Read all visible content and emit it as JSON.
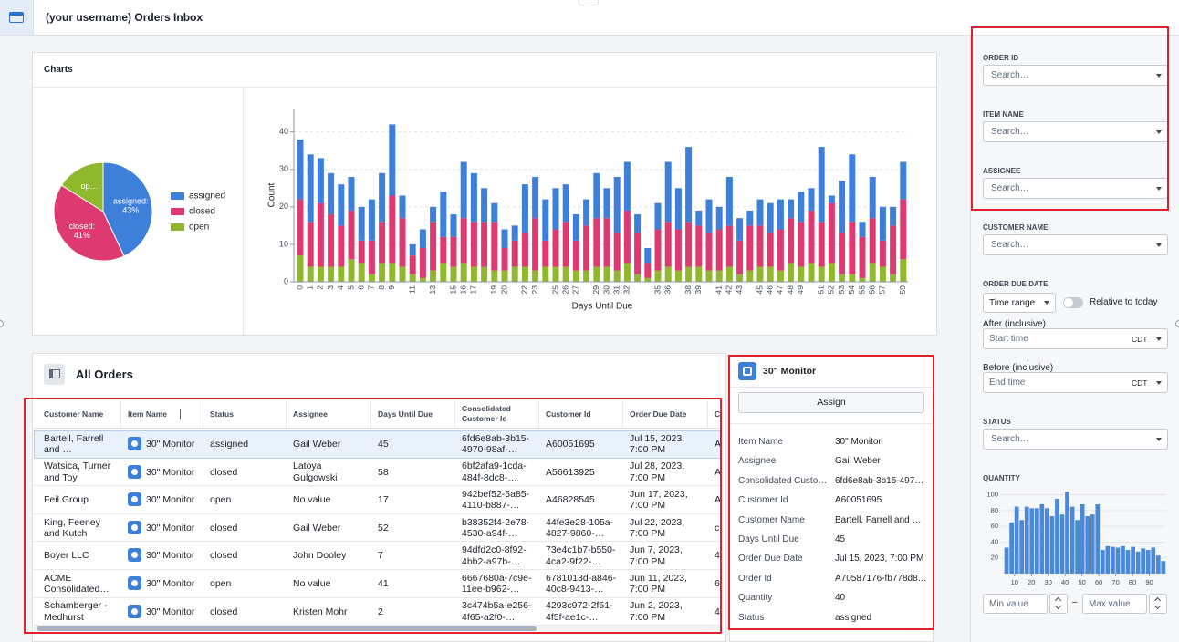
{
  "header": {
    "title": "(your username) Orders Inbox"
  },
  "charts_panel": {
    "title": "Charts",
    "pie_chart": {
      "type": "pie",
      "categories": [
        "assigned",
        "closed",
        "open"
      ],
      "values": [
        43,
        41,
        16
      ],
      "slice_labels": [
        "assigned:",
        "closed:",
        "op…"
      ],
      "value_labels": [
        "43%",
        "41%",
        null
      ],
      "colors": [
        "#3d7fd9",
        "#dc3a70",
        "#8fb82c"
      ],
      "legend": "right"
    },
    "bar_chart": {
      "type": "bar",
      "stacked": true,
      "x_label": "Days Until Due",
      "y_label": "Count",
      "categories": [
        "0",
        "1",
        "2",
        "3",
        "4",
        "5",
        "6",
        "7",
        "8",
        "9",
        null,
        "11",
        null,
        "13",
        null,
        "15",
        "16",
        "17",
        null,
        "19",
        "20",
        null,
        "22",
        "23",
        null,
        "25",
        "26",
        "27",
        null,
        "29",
        "30",
        "31",
        "32",
        null,
        null,
        "35",
        "36",
        null,
        "38",
        "39",
        null,
        "41",
        "42",
        "43",
        null,
        "45",
        "46",
        "47",
        "48",
        "49",
        null,
        "51",
        "52",
        "53",
        "54",
        "55",
        "56",
        "57",
        null,
        "59"
      ],
      "series": [
        {
          "name": "open",
          "color": "#8fb82c",
          "values": [
            7,
            4,
            4,
            4,
            4,
            6,
            5,
            2,
            5,
            5,
            4,
            2,
            1,
            3,
            5,
            4,
            5,
            4,
            4,
            3,
            3,
            4,
            4,
            3,
            4,
            4,
            4,
            3,
            3,
            4,
            4,
            3,
            5,
            2,
            1,
            3,
            4,
            3,
            4,
            4,
            3,
            3,
            4,
            2,
            3,
            4,
            4,
            3,
            5,
            4,
            5,
            4,
            5,
            2,
            2,
            1,
            5,
            4,
            2,
            6
          ]
        },
        {
          "name": "closed",
          "color": "#dc3a70",
          "values": [
            15,
            12,
            17,
            14,
            11,
            13,
            6,
            9,
            11,
            18,
            13,
            5,
            8,
            13,
            7,
            8,
            12,
            12,
            12,
            13,
            6,
            7,
            9,
            14,
            7,
            10,
            12,
            8,
            12,
            13,
            13,
            10,
            14,
            11,
            4,
            11,
            12,
            11,
            12,
            11,
            10,
            11,
            11,
            9,
            12,
            11,
            9,
            11,
            12,
            12,
            14,
            12,
            16,
            11,
            14,
            11,
            12,
            7,
            13,
            16
          ]
        },
        {
          "name": "assigned",
          "color": "#3d7fd9",
          "values": [
            16,
            18,
            12,
            11,
            11,
            9,
            9,
            11,
            13,
            19,
            6,
            3,
            5,
            4,
            12,
            6,
            15,
            13,
            9,
            5,
            5,
            4,
            13,
            11,
            11,
            11,
            10,
            7,
            7,
            12,
            8,
            15,
            13,
            5,
            4,
            7,
            16,
            11,
            20,
            4,
            9,
            6,
            13,
            6,
            4,
            7,
            8,
            8,
            5,
            8,
            6,
            20,
            2,
            14,
            18,
            4,
            11,
            9,
            5,
            10
          ]
        }
      ],
      "ylim": [
        0,
        46
      ],
      "yticks": [
        0,
        10,
        20,
        30,
        40
      ],
      "grid": true
    }
  },
  "table": {
    "title": "All Orders",
    "columns": [
      "Customer Name",
      "Item Name",
      "Status",
      "Assignee",
      "Days Until Due",
      "Consolidated Customer Id",
      "Customer Id",
      "Order Due Date",
      "C"
    ],
    "rows": [
      [
        "Bartell, Farrell and …",
        "30\" Monitor",
        "assigned",
        "Gail Weber",
        45,
        "6fd6e8ab-3b15-4970-98af-…",
        "A60051695",
        "Jul 15, 2023, 7:00 PM",
        "A"
      ],
      [
        "Watsica, Turner and Toy",
        "30\" Monitor",
        "closed",
        "Latoya Gulgowski",
        58,
        "6bf2afa9-1cda-484f-8dc8-…",
        "A56613925",
        "Jul 28, 2023, 7:00 PM",
        "A"
      ],
      [
        "Feil Group",
        "30\" Monitor",
        "open",
        "No value",
        17,
        "942bef52-5a85-4110-b887-…",
        "A46828545",
        "Jun 17, 2023, 7:00 PM",
        "A"
      ],
      [
        "King, Feeney and Kutch",
        "30\" Monitor",
        "closed",
        "Gail Weber",
        52,
        "b38352f4-2e78-4530-a94f-…",
        "44fe3e28-105a-4827-9860-…",
        "Jul 22, 2023, 7:00 PM",
        "c"
      ],
      [
        "Boyer LLC",
        "30\" Monitor",
        "closed",
        "John Dooley",
        7,
        "94dfd2c0-8f92-4bb2-a97b-…",
        "73e4c1b7-b550-4ca2-9f22-…",
        "Jun 7, 2023, 7:00 PM",
        "4"
      ],
      [
        "ACME Consolidated…",
        "30\" Monitor",
        "open",
        "No value",
        41,
        "6667680a-7c9e-11ee-b962-…",
        "6781013d-a846-40c8-9413-…",
        "Jun 11, 2023, 7:00 PM",
        "6"
      ],
      [
        "Schamberger - Medhurst",
        "30\" Monitor",
        "closed",
        "Kristen Mohr",
        2,
        "3c474b5a-e256-4f65-a2f0-…",
        "4293c972-2f51-4f5f-ae1c-…",
        "Jun 2, 2023, 7:00 PM",
        "4"
      ]
    ]
  },
  "details": {
    "title": "30\" Monitor",
    "button": "Assign",
    "fields": [
      [
        "Item Name",
        "30\" Monitor"
      ],
      [
        "Assignee",
        "Gail Weber"
      ],
      [
        "Consolidated Custo…",
        "6fd6e8ab-3b15-497…"
      ],
      [
        "Customer Id",
        "A60051695"
      ],
      [
        "Customer Name",
        "Bartell, Farrell and …"
      ],
      [
        "Days Until Due",
        45
      ],
      [
        "Order Due Date",
        "Jul 15, 2023, 7:00 PM"
      ],
      [
        "Order Id",
        "A70587176-fb778d8…"
      ],
      [
        "Quantity",
        40
      ],
      [
        "Status",
        "assigned"
      ]
    ]
  },
  "filters": {
    "order_id": {
      "label": "ORDER ID",
      "placeholder": "Search…"
    },
    "item_name": {
      "label": "ITEM NAME",
      "placeholder": "Search…"
    },
    "assignee": {
      "label": "ASSIGNEE",
      "placeholder": "Search…"
    },
    "customer_name": {
      "label": "CUSTOMER NAME",
      "placeholder": "Search…"
    },
    "order_due_date": {
      "label": "ORDER DUE DATE",
      "mode": "Time range",
      "toggle_label": "Relative to today",
      "after_label": "After (inclusive)",
      "after_placeholder": "Start time",
      "after_tz": "CDT",
      "before_label": "Before (inclusive)",
      "before_placeholder": "End time",
      "before_tz": "CDT"
    },
    "status": {
      "label": "STATUS",
      "placeholder": "Search…"
    },
    "quantity": {
      "label": "QUANTITY",
      "histogram": {
        "type": "histogram",
        "bins": [
          4,
          7,
          10,
          13,
          16,
          19,
          22,
          25,
          28,
          31,
          34,
          37,
          40,
          43,
          46,
          49,
          52,
          55,
          58,
          61,
          64,
          67,
          70,
          73,
          76,
          79,
          82,
          85,
          88,
          91,
          94,
          97,
          100
        ],
        "counts": [
          33,
          65,
          85,
          68,
          85,
          83,
          83,
          88,
          83,
          73,
          95,
          75,
          104,
          85,
          68,
          88,
          73,
          75,
          88,
          30,
          35,
          34,
          33,
          35,
          30,
          34,
          28,
          32,
          30,
          33,
          23,
          16
        ],
        "color": "#4a88d8",
        "xlim": [
          2,
          100
        ],
        "xticks": [
          10,
          20,
          30,
          40,
          50,
          60,
          70,
          80,
          90
        ],
        "ylim": [
          0,
          110
        ],
        "yticks": [
          20,
          40,
          60,
          80,
          100
        ],
        "grid": true
      },
      "min_placeholder": "Min value",
      "separator": "–",
      "max_placeholder": "Max value"
    }
  }
}
